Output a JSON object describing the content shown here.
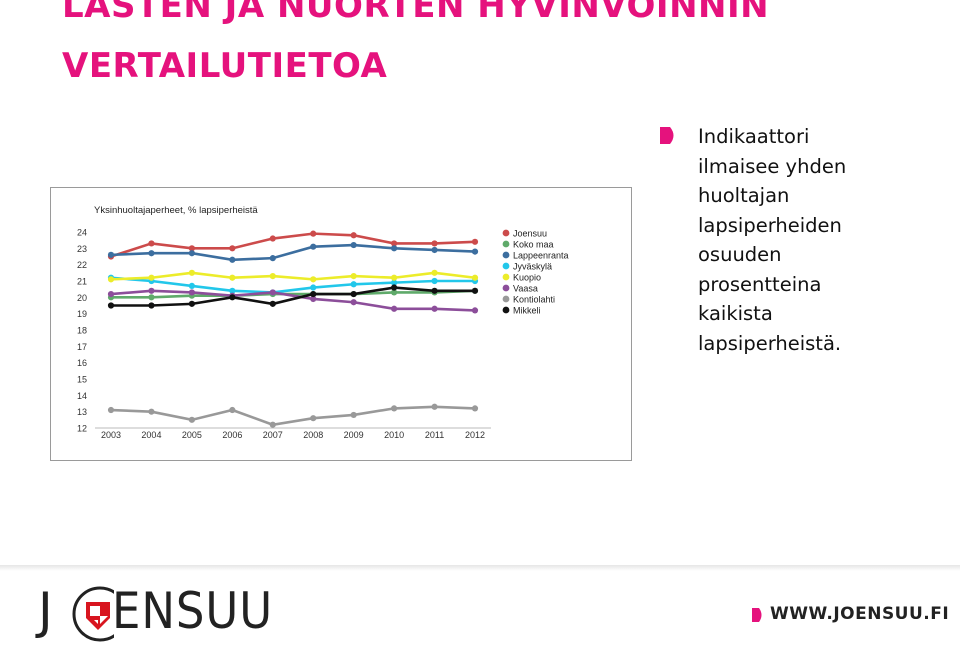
{
  "slide": {
    "title_line1": "LASTEN JA NUORTEN HYVINVOINNIN",
    "title_line2": "VERTAILUTIETOA",
    "bullet_lines": [
      "Indikaattori",
      "ilmaisee yhden",
      "huoltajan",
      "lapsiperheiden",
      "osuuden",
      "prosentteina",
      "kaikista",
      "lapsiperheistä."
    ],
    "accent_color": "#e5127d"
  },
  "footer": {
    "logo_text": "ENSUU",
    "logo_letter": "J",
    "url": "WWW.JOENSUU.FI"
  },
  "chart_data": {
    "type": "line",
    "title": "Yksinhuoltajaperheet, % lapsiperheistä",
    "xlabel": "",
    "ylabel": "",
    "x": [
      "2003",
      "2004",
      "2005",
      "2006",
      "2007",
      "2008",
      "2009",
      "2010",
      "2011",
      "2012"
    ],
    "yticks": [
      "24",
      "23",
      "22",
      "21",
      "20",
      "19",
      "18",
      "17",
      "16",
      "15",
      "14",
      "13",
      "12"
    ],
    "ylim": [
      12,
      24
    ],
    "grid": false,
    "legend_position": "right",
    "series": [
      {
        "name": "Joensuu",
        "color": "#cc4b4b",
        "values": [
          22.5,
          23.3,
          23.0,
          23.0,
          23.6,
          23.9,
          23.8,
          23.3,
          23.3,
          23.4
        ]
      },
      {
        "name": "Koko maa",
        "color": "#5faa6a",
        "values": [
          20.0,
          20.0,
          20.1,
          20.1,
          20.2,
          20.2,
          20.2,
          20.3,
          20.3,
          20.4
        ]
      },
      {
        "name": "Lappeenranta",
        "color": "#3c6e9f",
        "values": [
          22.6,
          22.7,
          22.7,
          22.3,
          22.4,
          23.1,
          23.2,
          23.0,
          22.9,
          22.8
        ]
      },
      {
        "name": "Jyväskylä",
        "color": "#22c7ea",
        "values": [
          21.2,
          21.0,
          20.7,
          20.4,
          20.3,
          20.6,
          20.8,
          20.9,
          21.0,
          21.0
        ]
      },
      {
        "name": "Kuopio",
        "color": "#ecec2a",
        "values": [
          21.1,
          21.2,
          21.5,
          21.2,
          21.3,
          21.1,
          21.3,
          21.2,
          21.5,
          21.2
        ]
      },
      {
        "name": "Vaasa",
        "color": "#8c4e9a",
        "values": [
          20.2,
          20.4,
          20.3,
          20.1,
          20.3,
          19.9,
          19.7,
          19.3,
          19.3,
          19.2
        ]
      },
      {
        "name": "Kontiolahti",
        "color": "#999999",
        "values": [
          13.1,
          13.0,
          12.5,
          13.1,
          12.2,
          12.6,
          12.8,
          13.2,
          13.3,
          13.2
        ]
      },
      {
        "name": "Mikkeli",
        "color": "#111111",
        "values": [
          19.5,
          19.5,
          19.6,
          20.0,
          19.6,
          20.2,
          20.2,
          20.6,
          20.4,
          20.4
        ]
      }
    ]
  }
}
